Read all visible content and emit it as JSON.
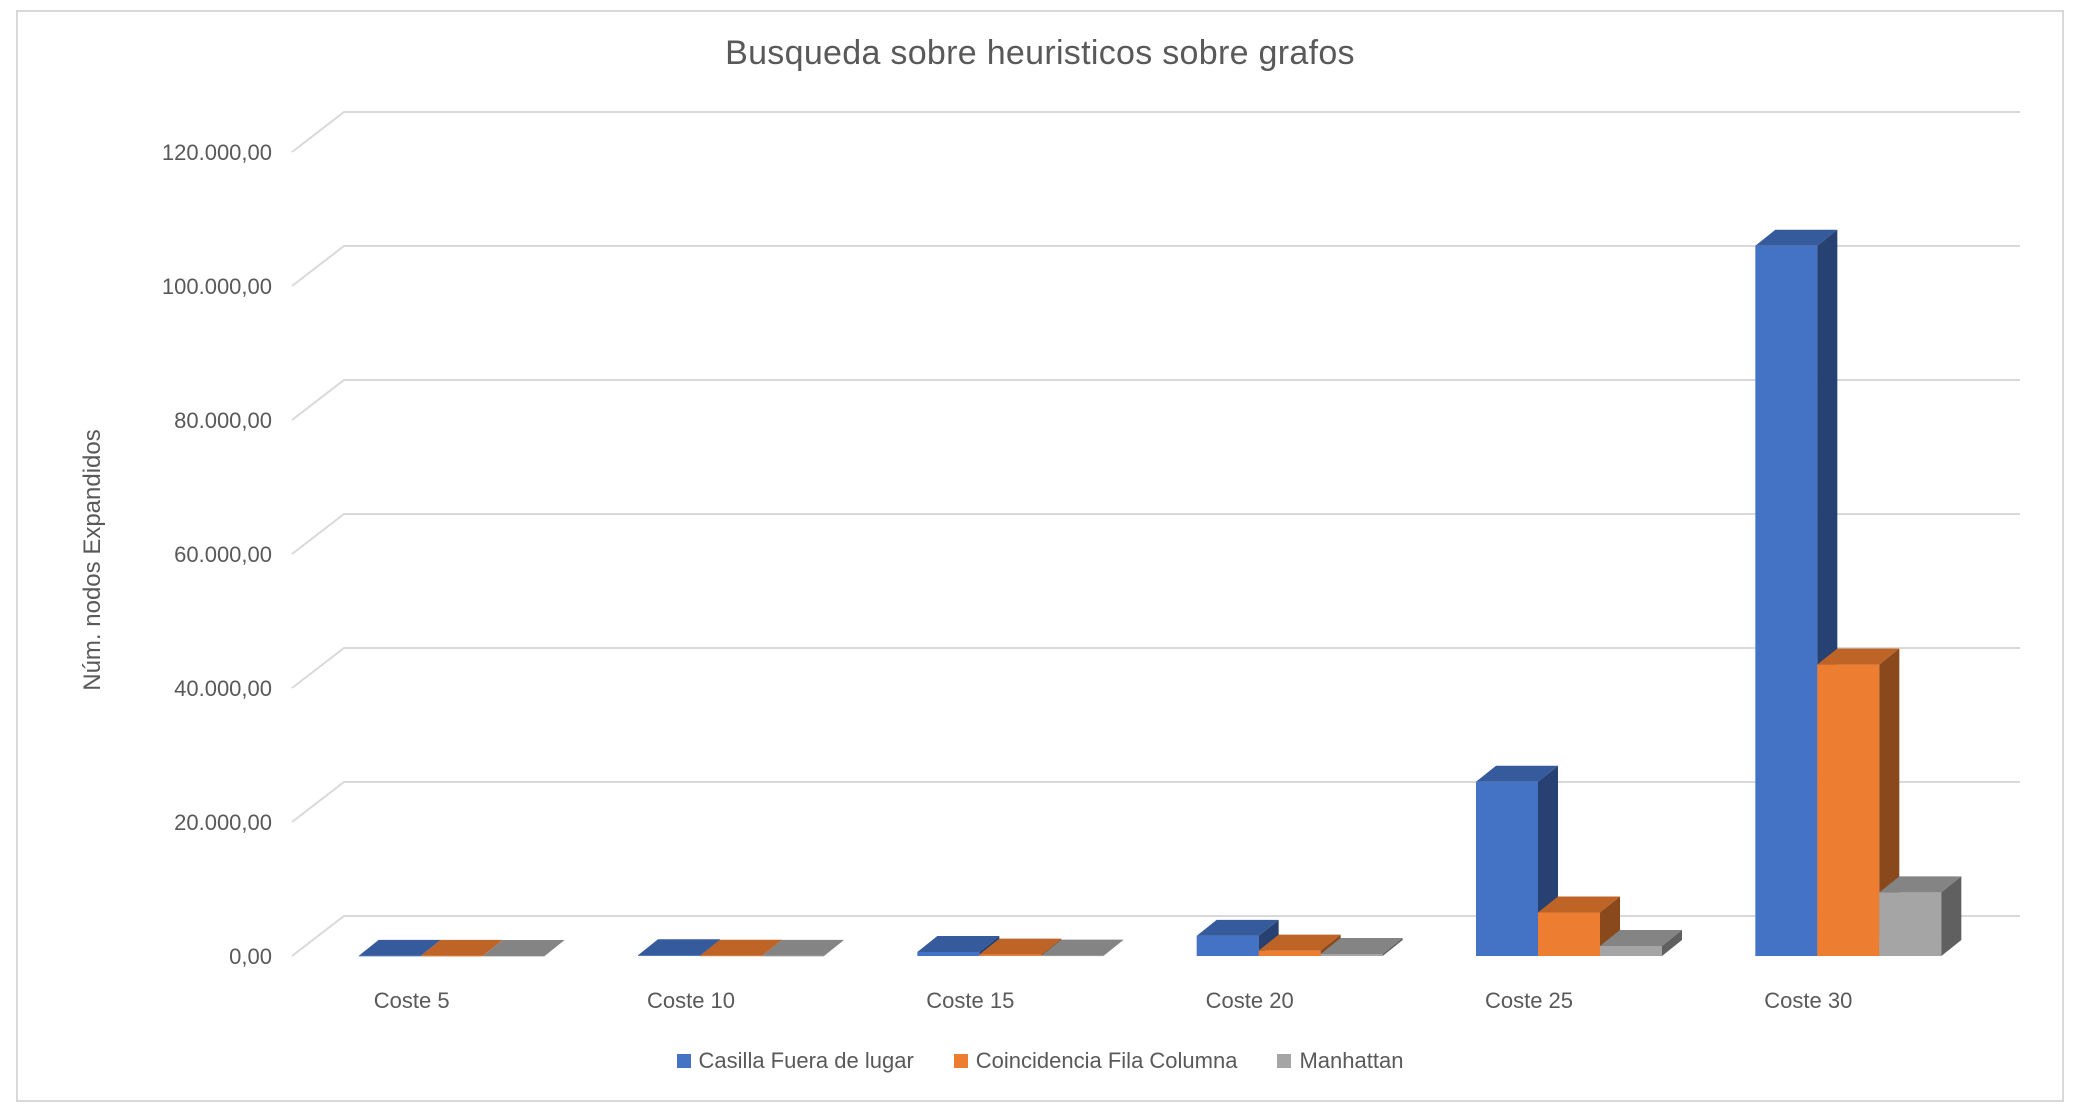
{
  "chart_data": {
    "type": "bar",
    "title": "Busqueda sobre heuristicos sobre grafos",
    "xlabel": "",
    "ylabel": "Núm. nodos Expandidos",
    "categories": [
      "Coste 5",
      "Coste 10",
      "Coste 15",
      "Coste 20",
      "Coste 25",
      "Coste 30"
    ],
    "y_ticks": [
      "0,00",
      "20.000,00",
      "40.000,00",
      "60.000,00",
      "80.000,00",
      "100.000,00",
      "120.000,00"
    ],
    "ylim": [
      0,
      120000
    ],
    "grid": true,
    "legend_position": "bottom",
    "three_d": true,
    "series": [
      {
        "name": "Casilla Fuera de lugar",
        "color": "#4472c4",
        "values": [
          20,
          120,
          600,
          3000,
          26000,
          106000
        ]
      },
      {
        "name": "Coincidencia Fila Columna",
        "color": "#ed7d31",
        "values": [
          10,
          40,
          200,
          800,
          6500,
          43500
        ]
      },
      {
        "name": "Manhattan",
        "color": "#a5a5a5",
        "values": [
          5,
          15,
          60,
          300,
          1500,
          9500
        ]
      }
    ]
  }
}
